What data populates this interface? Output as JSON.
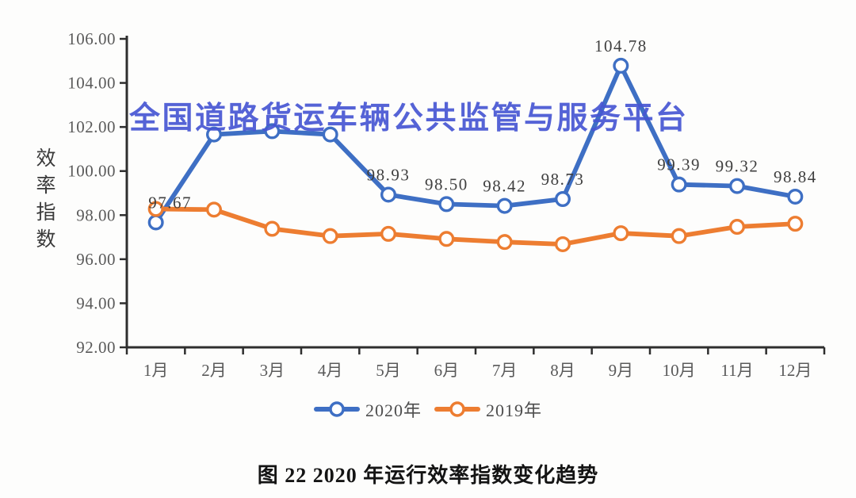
{
  "page": {
    "background": "#FDFDFC"
  },
  "watermark": {
    "text": "全国道路货运车辆公共监管与服务平台",
    "color": "#4756D3"
  },
  "caption": "图 22  2020 年运行效率指数变化趋势",
  "chart_data": {
    "type": "line",
    "title": "图 22  2020 年运行效率指数变化趋势",
    "xlabel": "",
    "ylabel": "效率指数",
    "categories": [
      "1月",
      "2月",
      "3月",
      "4月",
      "5月",
      "6月",
      "7月",
      "8月",
      "9月",
      "10月",
      "11月",
      "12月"
    ],
    "ylim": [
      92,
      106
    ],
    "ytick_step": 2,
    "ytick_labels": [
      "106.00",
      "104.00",
      "102.00",
      "100.00",
      "98.00",
      "96.00",
      "94.00",
      "92.00"
    ],
    "grid": false,
    "legend_position": "bottom-center",
    "axis_color": "#2E2E2E",
    "tick_label_color": "#5A5A5A",
    "data_label_color": "#3F3F3F",
    "marker_style": "open-circle",
    "series": [
      {
        "name": "2020年",
        "color": "#3E6FC4",
        "values": [
          97.67,
          101.66,
          101.81,
          101.66,
          98.93,
          98.5,
          98.42,
          98.73,
          104.78,
          99.39,
          99.32,
          98.84
        ],
        "point_labels": [
          "97.67",
          null,
          null,
          null,
          "98.93",
          "98.50",
          "98.42",
          "98.73",
          "104.78",
          "99.39",
          "99.32",
          "98.84"
        ]
      },
      {
        "name": "2019年",
        "color": "#ED7D31",
        "values": [
          98.28,
          98.25,
          97.38,
          97.05,
          97.15,
          96.92,
          96.78,
          96.68,
          97.18,
          97.05,
          97.47,
          97.61
        ],
        "point_labels": null
      }
    ]
  }
}
